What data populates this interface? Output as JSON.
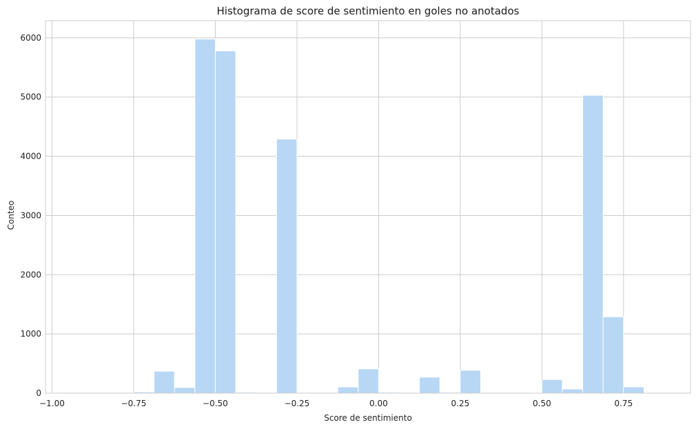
{
  "chart_data": {
    "type": "bar",
    "subtype": "histogram",
    "title": "Histograma de score de sentimiento en goles no anotados",
    "xlabel": "Score de sentimiento",
    "ylabel": "Conteo",
    "xlim": [
      -1.02,
      0.955
    ],
    "ylim": [
      0,
      6290
    ],
    "xticks": [
      -1.0,
      -0.75,
      -0.5,
      -0.25,
      0.0,
      0.25,
      0.5,
      0.75
    ],
    "xtick_labels": [
      "−1.00",
      "−0.75",
      "−0.50",
      "−0.25",
      "0.00",
      "0.25",
      "0.50",
      "0.75"
    ],
    "yticks": [
      0,
      1000,
      2000,
      3000,
      4000,
      5000,
      6000
    ],
    "ytick_labels": [
      "0",
      "1000",
      "2000",
      "3000",
      "4000",
      "5000",
      "6000"
    ],
    "grid": true,
    "bar_color": "#b7d7f4",
    "bar_edge_color": "#ffffff",
    "grid_color": "#cccccc",
    "bins": [
      {
        "x0": -1.0,
        "x1": -0.9375,
        "count": 3
      },
      {
        "x0": -0.9375,
        "x1": -0.875,
        "count": 3
      },
      {
        "x0": -0.875,
        "x1": -0.8125,
        "count": 5
      },
      {
        "x0": -0.8125,
        "x1": -0.75,
        "count": 8
      },
      {
        "x0": -0.75,
        "x1": -0.6875,
        "count": 20
      },
      {
        "x0": -0.6875,
        "x1": -0.625,
        "count": 370
      },
      {
        "x0": -0.625,
        "x1": -0.5625,
        "count": 95
      },
      {
        "x0": -0.5625,
        "x1": -0.5,
        "count": 5980
      },
      {
        "x0": -0.5,
        "x1": -0.4375,
        "count": 5780
      },
      {
        "x0": -0.4375,
        "x1": -0.375,
        "count": 15
      },
      {
        "x0": -0.375,
        "x1": -0.3125,
        "count": 5
      },
      {
        "x0": -0.3125,
        "x1": -0.25,
        "count": 4290
      },
      {
        "x0": -0.25,
        "x1": -0.1875,
        "count": 3
      },
      {
        "x0": -0.1875,
        "x1": -0.125,
        "count": 5
      },
      {
        "x0": -0.125,
        "x1": -0.0625,
        "count": 105
      },
      {
        "x0": -0.0625,
        "x1": 0.0,
        "count": 410
      },
      {
        "x0": 0.0,
        "x1": 0.0625,
        "count": 15
      },
      {
        "x0": 0.0625,
        "x1": 0.125,
        "count": 10
      },
      {
        "x0": 0.125,
        "x1": 0.1875,
        "count": 270
      },
      {
        "x0": 0.1875,
        "x1": 0.25,
        "count": 15
      },
      {
        "x0": 0.25,
        "x1": 0.3125,
        "count": 385
      },
      {
        "x0": 0.3125,
        "x1": 0.375,
        "count": 3
      },
      {
        "x0": 0.375,
        "x1": 0.4375,
        "count": 3
      },
      {
        "x0": 0.4375,
        "x1": 0.5,
        "count": 5
      },
      {
        "x0": 0.5,
        "x1": 0.5625,
        "count": 230
      },
      {
        "x0": 0.5625,
        "x1": 0.625,
        "count": 70
      },
      {
        "x0": 0.625,
        "x1": 0.6875,
        "count": 5030
      },
      {
        "x0": 0.6875,
        "x1": 0.75,
        "count": 1290
      },
      {
        "x0": 0.75,
        "x1": 0.8125,
        "count": 105
      },
      {
        "x0": 0.8125,
        "x1": 0.875,
        "count": 3
      }
    ]
  }
}
